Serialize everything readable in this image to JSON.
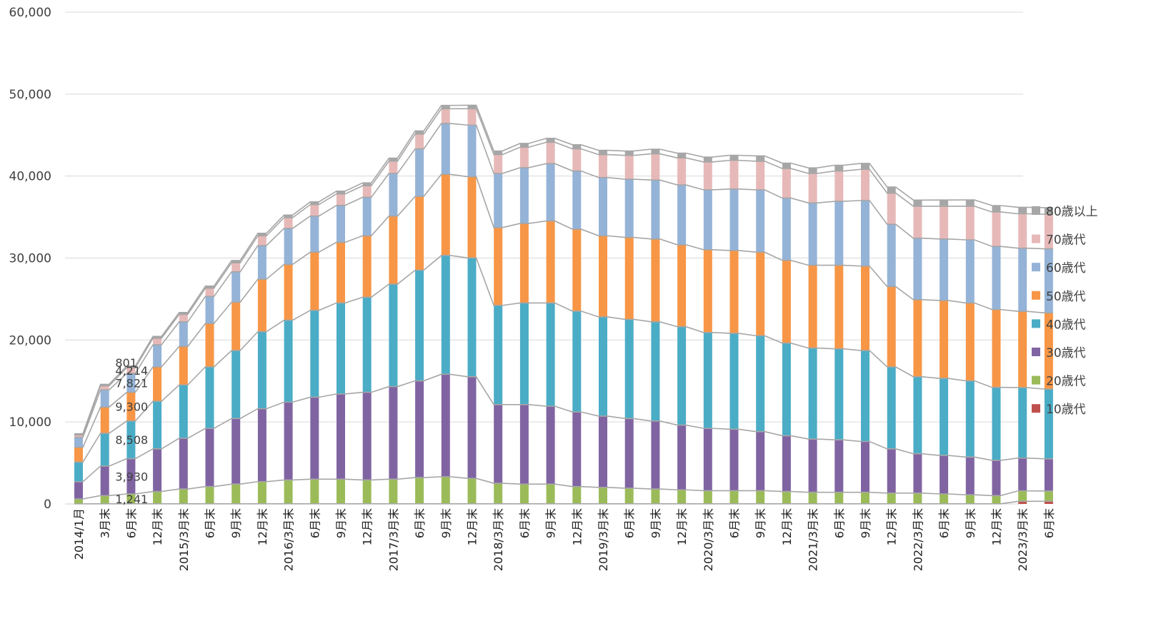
{
  "chart_data": {
    "type": "bar",
    "stacked": true,
    "title": "",
    "xlabel": "",
    "ylabel": "",
    "ylim": [
      0,
      60000
    ],
    "yticks": [
      0,
      10000,
      20000,
      30000,
      40000,
      50000,
      60000
    ],
    "ytick_labels": [
      "0",
      "10,000",
      "20,000",
      "30,000",
      "40,000",
      "50,000",
      "60,000"
    ],
    "grid": true,
    "legend_position": "right",
    "categories": [
      "2014/1月",
      "3月末",
      "6月末",
      "12月末",
      "2015/3月末",
      "6月末",
      "9月末",
      "12月末",
      "2016/3月末",
      "6月末",
      "9月末",
      "12月末",
      "2017/3月末",
      "6月末",
      "9月末",
      "12月末",
      "2018/3月末",
      "6月末",
      "9月末",
      "12月末",
      "2019/3月末",
      "6月末",
      "9月末",
      "12月末",
      "2020/3月末",
      "6月末",
      "9月末",
      "12月末",
      "2021/3月末",
      "6月末",
      "9月末",
      "12月末",
      "2022/3月末",
      "6月末",
      "9月末",
      "12月末",
      "2023/3月末",
      "6月末"
    ],
    "series": [
      {
        "name": "10歳代",
        "color": "#c0504d",
        "values": [
          10,
          20,
          20,
          20,
          20,
          20,
          20,
          20,
          20,
          20,
          20,
          20,
          20,
          20,
          20,
          20,
          20,
          20,
          20,
          20,
          20,
          20,
          20,
          20,
          20,
          20,
          20,
          20,
          20,
          20,
          20,
          20,
          20,
          20,
          20,
          20,
          320,
          330
        ]
      },
      {
        "name": "20歳代",
        "color": "#9bbb59",
        "values": [
          600,
          1000,
          1200,
          1500,
          1800,
          2100,
          2400,
          2700,
          2900,
          3000,
          3000,
          2900,
          3000,
          3200,
          3300,
          3100,
          2500,
          2400,
          2400,
          2100,
          2000,
          1900,
          1800,
          1700,
          1600,
          1600,
          1600,
          1500,
          1400,
          1400,
          1400,
          1300,
          1300,
          1200,
          1100,
          1000,
          1280,
          1241
        ]
      },
      {
        "name": "30歳代",
        "color": "#8064a2",
        "values": [
          2100,
          3600,
          4300,
          5200,
          6200,
          7100,
          8000,
          8900,
          9500,
          10000,
          10400,
          10700,
          11300,
          11800,
          12500,
          12400,
          9600,
          9700,
          9500,
          9100,
          8700,
          8500,
          8300,
          7900,
          7600,
          7500,
          7200,
          6800,
          6500,
          6400,
          6200,
          5400,
          4800,
          4700,
          4600,
          4300,
          4000,
          3930
        ]
      },
      {
        "name": "40歳代",
        "color": "#4bacc6",
        "values": [
          2400,
          4000,
          4600,
          5800,
          6500,
          7500,
          8300,
          9400,
          10000,
          10600,
          11100,
          11600,
          12500,
          13500,
          14500,
          14500,
          12100,
          12400,
          12600,
          12300,
          12100,
          12100,
          12100,
          12000,
          11700,
          11700,
          11700,
          11300,
          11100,
          11100,
          11100,
          10000,
          9400,
          9400,
          9300,
          8900,
          8600,
          8508
        ]
      },
      {
        "name": "50歳代",
        "color": "#f79646",
        "values": [
          1800,
          3200,
          3500,
          4200,
          4700,
          5300,
          5900,
          6400,
          6800,
          7100,
          7400,
          7500,
          8300,
          9000,
          9900,
          9900,
          9500,
          9700,
          10000,
          10000,
          9900,
          10000,
          10100,
          10000,
          10100,
          10100,
          10200,
          10100,
          10100,
          10200,
          10300,
          9800,
          9400,
          9500,
          9500,
          9500,
          9300,
          9300
        ]
      },
      {
        "name": "60歳代",
        "color": "#95b3d7",
        "values": [
          1200,
          2100,
          2300,
          2700,
          3000,
          3300,
          3700,
          4100,
          4400,
          4400,
          4500,
          4700,
          5200,
          5800,
          6200,
          6300,
          6600,
          6800,
          7000,
          7100,
          7100,
          7100,
          7200,
          7300,
          7300,
          7500,
          7600,
          7600,
          7600,
          7800,
          8000,
          7600,
          7500,
          7500,
          7700,
          7700,
          7700,
          7821
        ]
      },
      {
        "name": "70歳代",
        "color": "#e6b9b8",
        "values": [
          300,
          500,
          700,
          800,
          900,
          1000,
          1100,
          1200,
          1300,
          1400,
          1400,
          1400,
          1500,
          1800,
          1800,
          2000,
          2300,
          2500,
          2600,
          2700,
          2800,
          2900,
          3200,
          3300,
          3400,
          3500,
          3500,
          3600,
          3600,
          3700,
          3800,
          3800,
          3900,
          4000,
          4100,
          4200,
          4200,
          4214
        ]
      },
      {
        "name": "80歳以上",
        "color": "#a6a6a6",
        "values": [
          150,
          170,
          200,
          220,
          240,
          260,
          280,
          300,
          320,
          330,
          340,
          350,
          370,
          390,
          400,
          420,
          440,
          460,
          480,
          500,
          520,
          540,
          560,
          580,
          600,
          620,
          640,
          660,
          680,
          700,
          720,
          740,
          750,
          760,
          770,
          780,
          790,
          801
        ]
      }
    ],
    "data_labels": {
      "category": "6月末",
      "values": [
        "1,241",
        "3,930",
        "8,508",
        "9,300",
        "7,821",
        "4,214",
        "801"
      ]
    }
  }
}
